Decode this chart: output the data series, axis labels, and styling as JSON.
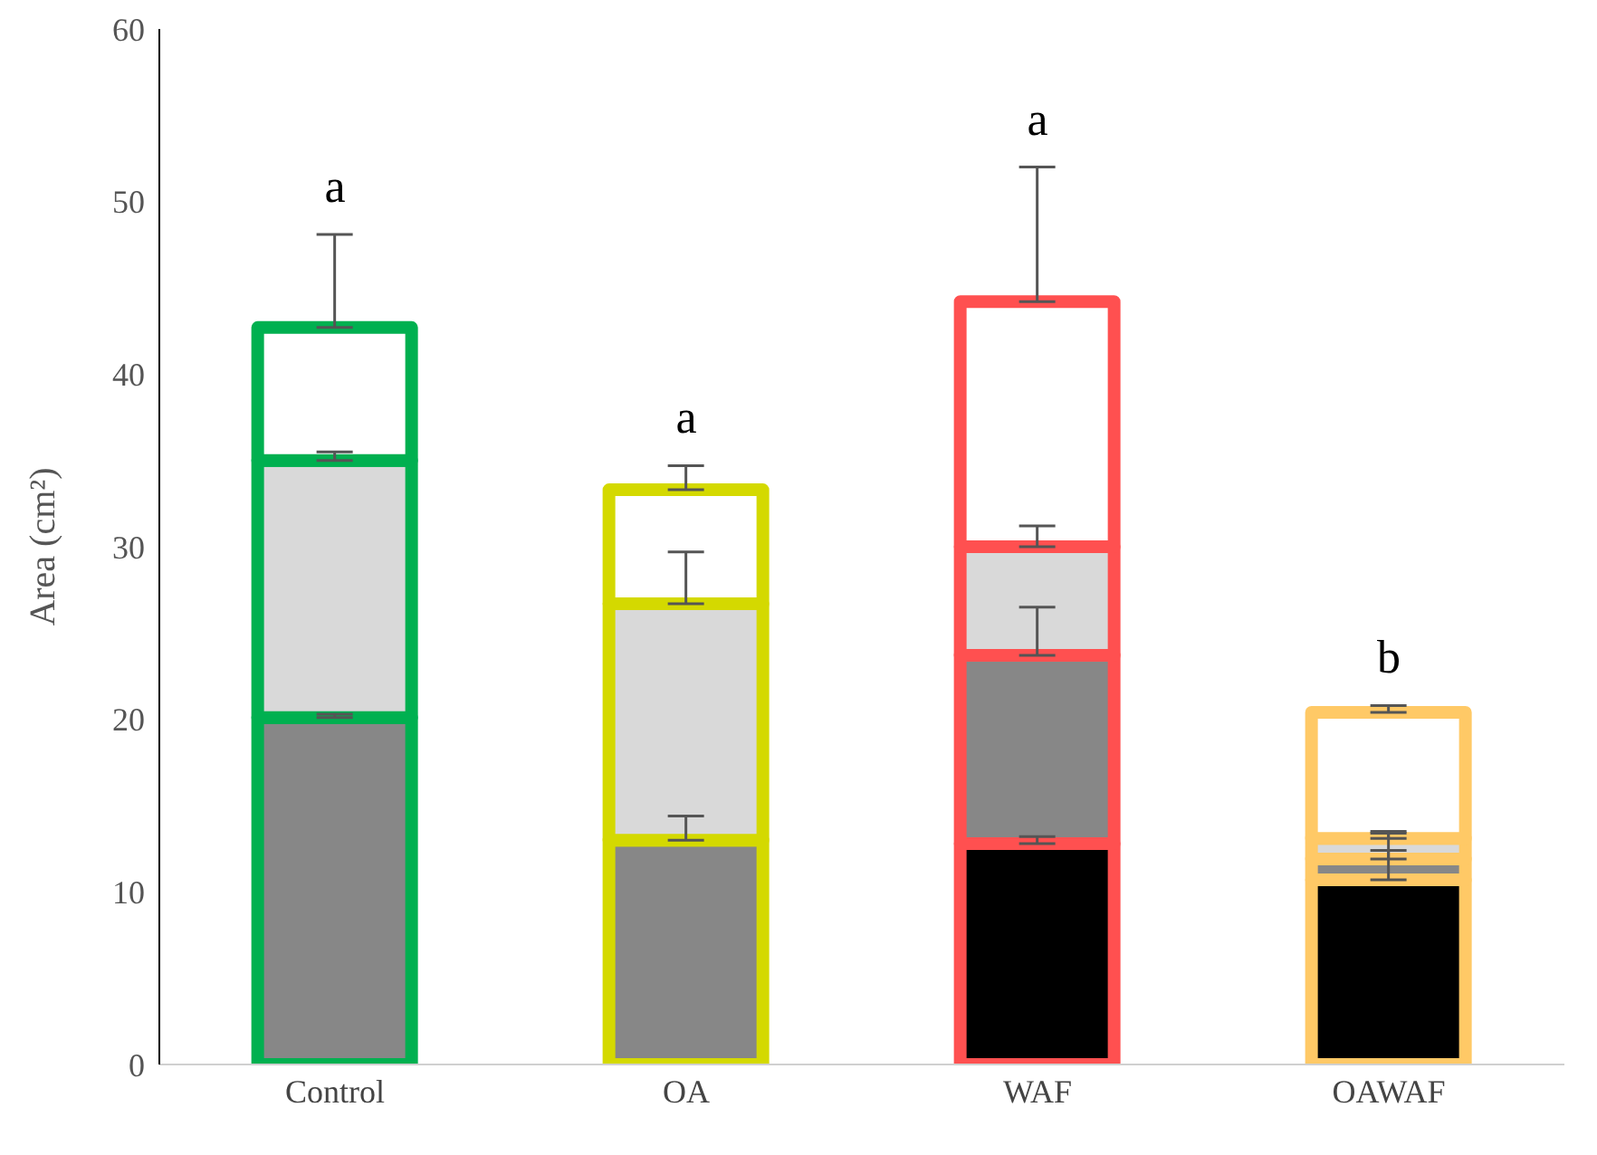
{
  "chart_data": {
    "type": "bar",
    "stacked": true,
    "ylabel": "Area (cm²)",
    "categories": [
      "Control",
      "OA",
      "WAF",
      "OAWAF"
    ],
    "colors": [
      "#00b050",
      "#d4d900",
      "#ff5050",
      "#ffc966"
    ],
    "series": [
      {
        "color": "#000000",
        "values": [
          null,
          null,
          12.8,
          10.7
        ],
        "errors": [
          null,
          null,
          [
            12.8,
            13.2
          ],
          [
            10.7,
            12.4
          ]
        ]
      },
      {
        "color": "#878787",
        "values": [
          20.1,
          13.0,
          10.9,
          1.2
        ],
        "errors": [
          [
            20.1,
            20.3
          ],
          [
            13.0,
            14.4
          ],
          [
            23.7,
            26.5
          ],
          [
            11.9,
            13.4
          ]
        ]
      },
      {
        "color": "#d9d9d9",
        "values": [
          14.9,
          13.7,
          6.3,
          1.2
        ],
        "errors": [
          [
            35.0,
            35.5
          ],
          [
            26.7,
            29.7
          ],
          [
            30.0,
            31.2
          ],
          [
            13.1,
            13.5
          ]
        ]
      },
      {
        "color": "#ffffff",
        "values": [
          7.7,
          6.6,
          14.2,
          7.3
        ],
        "errors": [
          [
            42.7,
            48.1
          ],
          [
            33.3,
            34.7
          ],
          [
            44.2,
            52.0
          ],
          [
            20.4,
            20.8
          ]
        ]
      }
    ],
    "ylim": [
      0,
      60
    ],
    "yticks": [
      0,
      10,
      20,
      30,
      40,
      50,
      60
    ],
    "grid": false,
    "legend": false,
    "annotations": [
      {
        "text": "a",
        "x": "Control",
        "y": 48.1
      },
      {
        "text": "a",
        "x": "OA",
        "y": 34.7
      },
      {
        "text": "a",
        "x": "WAF",
        "y": 52.0
      },
      {
        "text": "b",
        "x": "OAWAF",
        "y": 20.8
      }
    ]
  }
}
